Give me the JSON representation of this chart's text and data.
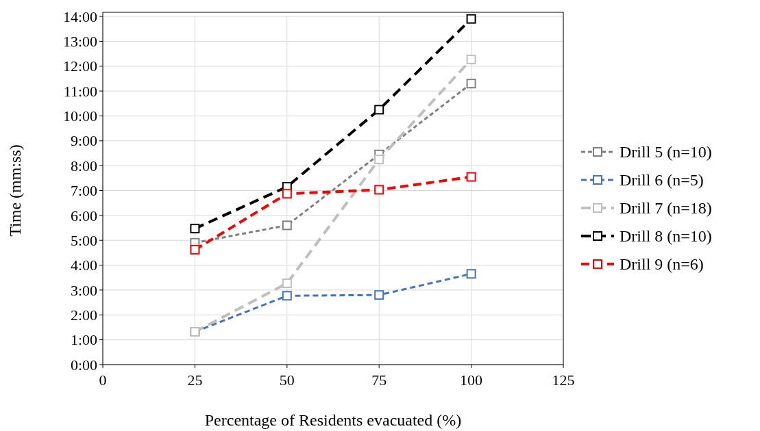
{
  "chart_data": {
    "type": "line",
    "xlabel": "Percentage of Residents evacuated (%)",
    "ylabel": "Time (mm:ss)",
    "x": [
      25,
      50,
      75,
      100
    ],
    "xlim": [
      0,
      125
    ],
    "xticks": [
      0,
      25,
      50,
      75,
      100,
      125
    ],
    "ylim": [
      0,
      14
    ],
    "yticks": [
      {
        "value": 0,
        "label": "0:00"
      },
      {
        "value": 1,
        "label": "1:00"
      },
      {
        "value": 2,
        "label": "2:00"
      },
      {
        "value": 3,
        "label": "3:00"
      },
      {
        "value": 4,
        "label": "4:00"
      },
      {
        "value": 5,
        "label": "5:00"
      },
      {
        "value": 6,
        "label": "6:00"
      },
      {
        "value": 7,
        "label": "7:00"
      },
      {
        "value": 8,
        "label": "8:00"
      },
      {
        "value": 9,
        "label": "9:00"
      },
      {
        "value": 10,
        "label": "10:00"
      },
      {
        "value": 11,
        "label": "11:00"
      },
      {
        "value": 12,
        "label": "12:00"
      },
      {
        "value": 13,
        "label": "13:00"
      },
      {
        "value": 14,
        "label": "14:00"
      }
    ],
    "grid": true,
    "legend": "right",
    "marker": "square",
    "line_style": "dashed",
    "series": [
      {
        "name": "Drill 5 (n=10)",
        "color": "#808080",
        "values": [
          4.9,
          5.6,
          8.45,
          11.3
        ]
      },
      {
        "name": "Drill 6 (n=5)",
        "color": "#4472c4",
        "values": [
          1.32,
          2.77,
          2.8,
          3.65
        ]
      },
      {
        "name": "Drill 7 (n=18)",
        "color": "#bfbfbf",
        "values": [
          1.32,
          3.27,
          8.25,
          12.27
        ]
      },
      {
        "name": "Drill 8 (n=10)",
        "color": "#000000",
        "values": [
          5.47,
          7.15,
          10.25,
          13.9
        ]
      },
      {
        "name": "Drill 9 (n=6)",
        "color": "#ff0000",
        "values": [
          4.62,
          6.87,
          7.03,
          7.55
        ]
      }
    ]
  }
}
